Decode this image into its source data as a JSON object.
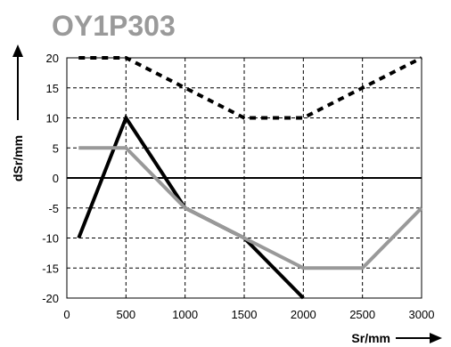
{
  "chart_data": {
    "type": "line",
    "title": "OY1P303",
    "xlabel": "Sr/mm",
    "ylabel": "dSr/mm",
    "xlim": [
      0,
      3000
    ],
    "ylim": [
      -20,
      20
    ],
    "x_ticks": [
      0,
      500,
      1000,
      1500,
      2000,
      2500,
      3000
    ],
    "y_ticks": [
      20,
      15,
      10,
      5,
      0,
      -5,
      -10,
      -15,
      -20
    ],
    "grid": true,
    "series": [
      {
        "style": "dotted",
        "color": "#000000",
        "points": [
          [
            100,
            20
          ],
          [
            500,
            20
          ],
          [
            1000,
            15
          ],
          [
            1500,
            10
          ],
          [
            2000,
            10
          ],
          [
            2500,
            15
          ],
          [
            3000,
            20
          ]
        ]
      },
      {
        "style": "solid",
        "color": "#000000",
        "points": [
          [
            100,
            -10
          ],
          [
            500,
            10
          ],
          [
            1000,
            -5
          ],
          [
            1500,
            -10
          ],
          [
            2000,
            -20
          ]
        ]
      },
      {
        "style": "solid",
        "color": "#999999",
        "points": [
          [
            100,
            5
          ],
          [
            500,
            5
          ],
          [
            1000,
            -5
          ],
          [
            1500,
            -10
          ],
          [
            2000,
            -15
          ],
          [
            2500,
            -15
          ],
          [
            3000,
            -5
          ]
        ]
      }
    ]
  }
}
